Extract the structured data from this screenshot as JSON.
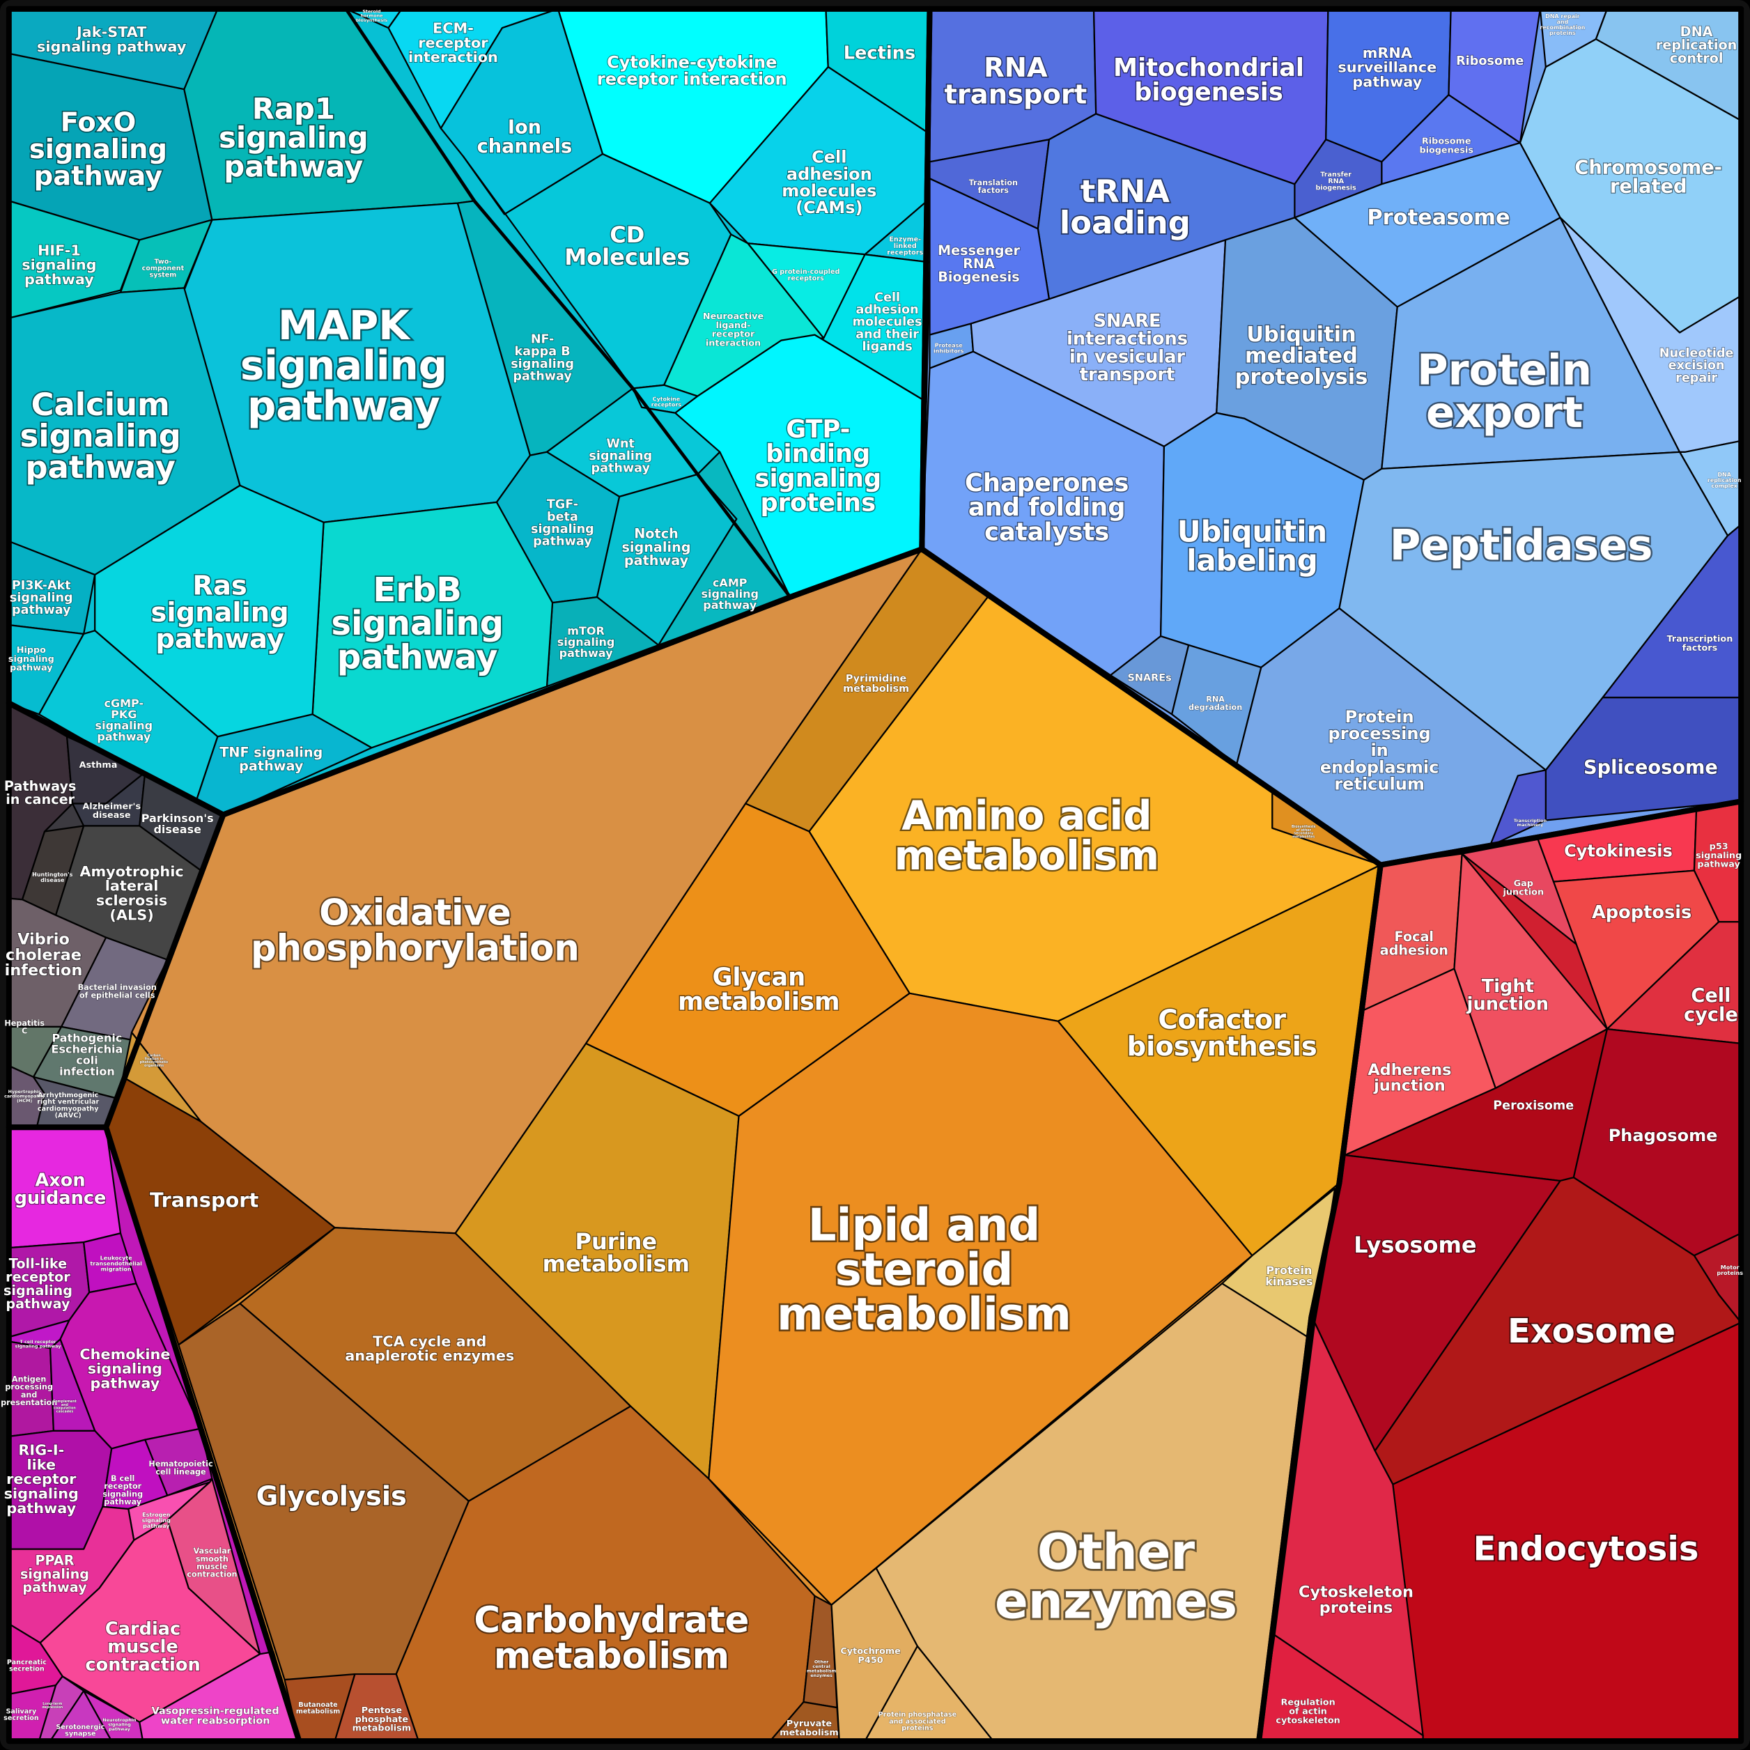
{
  "cells": [
    {
      "id": "c1",
      "lines": [
        "Jak-STAT",
        "signaling pathway"
      ],
      "color": "#0aa9c0"
    },
    {
      "id": "c2",
      "lines": [
        "FoxO",
        "signaling",
        "pathway"
      ],
      "color": "#05a4b6"
    },
    {
      "id": "c3",
      "lines": [
        "Rap1",
        "signaling",
        "pathway"
      ],
      "color": "#05b6b6"
    },
    {
      "id": "c4",
      "lines": [
        "Steroid",
        "hormone",
        "biosynthesis"
      ],
      "color": "#0bd4ec"
    },
    {
      "id": "c5",
      "lines": [
        "ECM-",
        "receptor",
        "interaction"
      ],
      "color": "#08d8f2"
    },
    {
      "id": "c6",
      "lines": [
        "Ion",
        "channels"
      ],
      "color": "#07c2dc"
    },
    {
      "id": "c7",
      "lines": [
        "Cytokine-cytokine",
        "receptor interaction"
      ],
      "color": "#00ffff"
    },
    {
      "id": "c8",
      "lines": [
        "Lectins"
      ],
      "color": "#00d2da"
    },
    {
      "id": "c9",
      "lines": [
        "Cell",
        "adhesion",
        "molecules",
        "(CAMs)"
      ],
      "color": "#08d2ea"
    },
    {
      "id": "c10",
      "lines": [
        "Enzyme-",
        "linked",
        "receptors"
      ],
      "color": "#07c8e0"
    },
    {
      "id": "c11",
      "lines": [
        "Cell",
        "adhesion",
        "molecules",
        "and their",
        "ligands"
      ],
      "color": "#00e2ea"
    },
    {
      "id": "c12",
      "lines": [
        "G protein-coupled",
        "receptors"
      ],
      "color": "#08ece4"
    },
    {
      "id": "c13",
      "lines": [
        "CD",
        "Molecules"
      ],
      "color": "#06c8da"
    },
    {
      "id": "c14",
      "lines": [
        "Neuroactive",
        "ligand-",
        "receptor",
        "interaction"
      ],
      "color": "#0ae6d6"
    },
    {
      "id": "c15",
      "lines": [
        "Cytokine",
        "receptors"
      ],
      "color": "#07d0e2"
    },
    {
      "id": "c16",
      "lines": [
        "GTP-",
        "binding",
        "signaling",
        "proteins"
      ],
      "color": "#00f6ff"
    },
    {
      "id": "c17",
      "lines": [
        "MAPK",
        "signaling",
        "pathway"
      ],
      "color": "#0bc2da"
    },
    {
      "id": "c18",
      "lines": [
        "HIF-1",
        "signaling",
        "pathway"
      ],
      "color": "#06c8c2"
    },
    {
      "id": "c19",
      "lines": [
        "Two-",
        "component",
        "system"
      ],
      "color": "#06c0b8"
    },
    {
      "id": "c20",
      "lines": [
        "Calcium",
        "signaling",
        "pathway"
      ],
      "color": "#07b8c8"
    },
    {
      "id": "c21",
      "lines": [
        "NF-",
        "kappa B",
        "signaling",
        "pathway"
      ],
      "color": "#06b4be"
    },
    {
      "id": "c22",
      "lines": [
        "Wnt",
        "signaling",
        "pathway"
      ],
      "color": "#08c8d8"
    },
    {
      "id": "c23",
      "lines": [
        "TGF-",
        "beta",
        "signaling",
        "pathway"
      ],
      "color": "#06b6ca"
    },
    {
      "id": "c24",
      "lines": [
        "Notch",
        "signaling",
        "pathway"
      ],
      "color": "#07c0d0"
    },
    {
      "id": "c25",
      "lines": [
        "cAMP",
        "signaling",
        "pathway"
      ],
      "color": "#08b8c0"
    },
    {
      "id": "c26",
      "lines": [
        "mTOR",
        "signaling",
        "pathway"
      ],
      "color": "#08b0b8"
    },
    {
      "id": "c27",
      "lines": [
        "ErbB",
        "signaling",
        "pathway"
      ],
      "color": "#0ad8d0"
    },
    {
      "id": "c28",
      "lines": [
        "Ras",
        "signaling",
        "pathway"
      ],
      "color": "#06d6e0"
    },
    {
      "id": "c29",
      "lines": [
        "PI3K-Akt",
        "signaling",
        "pathway"
      ],
      "color": "#05b0c4"
    },
    {
      "id": "c30",
      "lines": [
        "Hippo",
        "signaling",
        "pathway"
      ],
      "color": "#06bcd0"
    },
    {
      "id": "c31",
      "lines": [
        "cGMP-",
        "PKG",
        "signaling",
        "pathway"
      ],
      "color": "#08c8d8"
    },
    {
      "id": "c32",
      "lines": [
        "TNF signaling",
        "pathway"
      ],
      "color": "#08b6d0"
    },
    {
      "id": "d1",
      "lines": [
        "Pathways",
        "in cancer"
      ],
      "color": "#3b2e38"
    },
    {
      "id": "d2",
      "lines": [
        "Asthma"
      ],
      "color": "#35323e"
    },
    {
      "id": "d3",
      "lines": [
        "Alzheimer's",
        "disease"
      ],
      "color": "#383a48"
    },
    {
      "id": "d4",
      "lines": [
        "Parkinson's",
        "disease"
      ],
      "color": "#3a3c44"
    },
    {
      "id": "d5",
      "lines": [
        "Huntington's",
        "disease"
      ],
      "color": "#3e3836"
    },
    {
      "id": "d6",
      "lines": [
        "Amyotrophic",
        "lateral",
        "sclerosis",
        "(ALS)"
      ],
      "color": "#454545"
    },
    {
      "id": "d7",
      "lines": [
        "Vibrio",
        "cholerae",
        "infection"
      ],
      "color": "#6e6068"
    },
    {
      "id": "d8",
      "lines": [
        "Bacterial invasion",
        "of epithelial cells"
      ],
      "color": "#726a80"
    },
    {
      "id": "d9",
      "lines": [
        "Hepatitis",
        "C"
      ],
      "color": "#627668"
    },
    {
      "id": "d10",
      "lines": [
        "Pathogenic",
        "Escherichia",
        "coli",
        "infection"
      ],
      "color": "#60786e"
    },
    {
      "id": "d11",
      "lines": [
        "Hypertrophic",
        "cardiomyopathy",
        "(HCM)"
      ],
      "color": "#6a5870"
    },
    {
      "id": "d12",
      "lines": [
        "Arrhythmogenic",
        "right ventricular",
        "cardiomyopathy",
        "(ARVC)"
      ],
      "color": "#585868"
    },
    {
      "id": "m1",
      "lines": [
        "Axon",
        "guidance"
      ],
      "color": "#e628e0"
    },
    {
      "id": "m2",
      "lines": [
        "Toll-like",
        "receptor",
        "signaling",
        "pathway"
      ],
      "color": "#b018a8"
    },
    {
      "id": "m3",
      "lines": [
        "Leukocyte",
        "transendothelial",
        "migration"
      ],
      "color": "#c010c0"
    },
    {
      "id": "m4",
      "lines": [
        "T cell receptor",
        "signaling pathway"
      ],
      "color": "#c018c8"
    },
    {
      "id": "m5",
      "lines": [
        "Chemokine",
        "signaling",
        "pathway"
      ],
      "color": "#c818b0"
    },
    {
      "id": "m6",
      "lines": [
        "Antigen",
        "processing",
        "and",
        "presentation"
      ],
      "color": "#b018a0"
    },
    {
      "id": "m7",
      "lines": [
        "Complement",
        "and",
        "coagulation",
        "cascades"
      ],
      "color": "#b818b8"
    },
    {
      "id": "m8",
      "lines": [
        "RIG-I-",
        "like",
        "receptor",
        "signaling",
        "pathway"
      ],
      "color": "#b010a8"
    },
    {
      "id": "m9",
      "lines": [
        "B cell",
        "receptor",
        "signaling",
        "pathway"
      ],
      "color": "#c010c0"
    },
    {
      "id": "m10",
      "lines": [
        "Hematopoietic",
        "cell lineage"
      ],
      "color": "#b820b0"
    },
    {
      "id": "m11",
      "lines": [
        "Estrogen",
        "signaling",
        "pathway"
      ],
      "color": "#f850b0"
    },
    {
      "id": "m12",
      "lines": [
        "Vascular",
        "smooth",
        "muscle",
        "contraction"
      ],
      "color": "#e85088"
    },
    {
      "id": "m13",
      "lines": [
        "PPAR",
        "signaling",
        "pathway"
      ],
      "color": "#e83098"
    },
    {
      "id": "m14",
      "lines": [
        "Cardiac",
        "muscle",
        "contraction"
      ],
      "color": "#f84898"
    },
    {
      "id": "m15",
      "lines": [
        "Pancreatic",
        "secretion"
      ],
      "color": "#e01898"
    },
    {
      "id": "m16",
      "lines": [
        "Salivary",
        "secretion"
      ],
      "color": "#d020b0"
    },
    {
      "id": "m17",
      "lines": [
        "Long-term",
        "depression"
      ],
      "color": "#c840b8"
    },
    {
      "id": "m18",
      "lines": [
        "Serotonergic",
        "synapse"
      ],
      "color": "#c838c0"
    },
    {
      "id": "m19",
      "lines": [
        "Neurotrophin",
        "signaling",
        "pathway"
      ],
      "color": "#d030c0"
    },
    {
      "id": "m20",
      "lines": [
        "Vasopressin-regulated",
        "water reabsorption"
      ],
      "color": "#ee44c8"
    },
    {
      "id": "o1",
      "lines": [
        "Oxidative",
        "phosphorylation"
      ],
      "color": "#d99044"
    },
    {
      "id": "o2",
      "lines": [
        "Carbon",
        "fixation in",
        "photosynthetic",
        "organisms"
      ],
      "color": "#d49a38"
    },
    {
      "id": "o3",
      "lines": [
        "Transport"
      ],
      "color": "#8c4008"
    },
    {
      "id": "o4",
      "lines": [
        "Pyrimidine",
        "metabolism"
      ],
      "color": "#d08a1e"
    },
    {
      "id": "o5",
      "lines": [
        "Amino acid",
        "metabolism"
      ],
      "color": "#fbb224"
    },
    {
      "id": "o6",
      "lines": [
        "Biosynthesis",
        "of other",
        "secondary",
        "metabolites"
      ],
      "color": "#e09020"
    },
    {
      "id": "o7",
      "lines": [
        "Glycan",
        "metabolism"
      ],
      "color": "#ed9018"
    },
    {
      "id": "o8",
      "lines": [
        "Cofactor",
        "biosynthesis"
      ],
      "color": "#eda418"
    },
    {
      "id": "o9",
      "lines": [
        "Purine",
        "metabolism"
      ],
      "color": "#d8981f"
    },
    {
      "id": "o10",
      "lines": [
        "Lipid and",
        "steroid",
        "metabolism"
      ],
      "color": "#ec8e20"
    },
    {
      "id": "o11",
      "lines": [
        "TCA cycle and",
        "anaplerotic enzymes"
      ],
      "color": "#b86b20"
    },
    {
      "id": "o12",
      "lines": [
        "Glycolysis"
      ],
      "color": "#aa6428"
    },
    {
      "id": "o13",
      "lines": [
        "Carbohydrate",
        "metabolism"
      ],
      "color": "#c06820"
    },
    {
      "id": "o14",
      "lines": [
        "Butanoate",
        "metabolism"
      ],
      "color": "#a84e20"
    },
    {
      "id": "o15",
      "lines": [
        "Pentose",
        "phosphate",
        "metabolism"
      ],
      "color": "#b85030"
    },
    {
      "id": "o16",
      "lines": [
        "Other",
        "central",
        "metabolism",
        "enzymes"
      ],
      "color": "#a05826"
    },
    {
      "id": "o17",
      "lines": [
        "Pyruvate",
        "metabolism"
      ],
      "color": "#a05820"
    },
    {
      "id": "o18",
      "lines": [
        "Other",
        "enzymes"
      ],
      "color": "#e5b872"
    },
    {
      "id": "o19",
      "lines": [
        "Protein",
        "kinases"
      ],
      "color": "#e8c870"
    },
    {
      "id": "o20",
      "lines": [
        "Cytochrome",
        "P450"
      ],
      "color": "#e2ad60"
    },
    {
      "id": "o21",
      "lines": [
        "Protein phosphatase",
        "and associated",
        "proteins"
      ],
      "color": "#e6b468"
    },
    {
      "id": "b1",
      "lines": [
        "RNA",
        "transport"
      ],
      "color": "#5570e0"
    },
    {
      "id": "b2",
      "lines": [
        "Mitochondrial",
        "biogenesis"
      ],
      "color": "#5c60e8"
    },
    {
      "id": "b3",
      "lines": [
        "mRNA",
        "surveillance",
        "pathway"
      ],
      "color": "#4870e8"
    },
    {
      "id": "b4",
      "lines": [
        "Ribosome"
      ],
      "color": "#6070f0"
    },
    {
      "id": "b5",
      "lines": [
        "Ribosome",
        "biogenesis"
      ],
      "color": "#5a78f0"
    },
    {
      "id": "b6",
      "lines": [
        "Transfer",
        "RNA",
        "biogenesis"
      ],
      "color": "#4a60d0"
    },
    {
      "id": "b7",
      "lines": [
        "Translation",
        "factors"
      ],
      "color": "#5068d8"
    },
    {
      "id": "b8",
      "lines": [
        "tRNA",
        "loading"
      ],
      "color": "#5078e0"
    },
    {
      "id": "b9",
      "lines": [
        "Messenger",
        "RNA",
        "Biogenesis"
      ],
      "color": "#5878f0"
    },
    {
      "id": "b10",
      "lines": [
        "Protease",
        "inhibitors"
      ],
      "color": "#68a0f0"
    },
    {
      "id": "b11",
      "lines": [
        "SNARE",
        "interactions",
        "in vesicular",
        "transport"
      ],
      "color": "#8ab0f8"
    },
    {
      "id": "b12",
      "lines": [
        "Proteasome"
      ],
      "color": "#70b0f8"
    },
    {
      "id": "b13",
      "lines": [
        "Ubiquitin",
        "mediated",
        "proteolysis"
      ],
      "color": "#6aa0e0"
    },
    {
      "id": "b14",
      "lines": [
        "Protein",
        "export"
      ],
      "color": "#78b0f0"
    },
    {
      "id": "b15",
      "lines": [
        "Chromosome-",
        "related"
      ],
      "color": "#90d0f8"
    },
    {
      "id": "b16",
      "lines": [
        "DNA repair",
        "and",
        "recombination",
        "proteins"
      ],
      "color": "#88bcf8"
    },
    {
      "id": "b17",
      "lines": [
        "DNA",
        "replication",
        "control"
      ],
      "color": "#88c4f0"
    },
    {
      "id": "b18",
      "lines": [
        "Nucleotide",
        "excision",
        "repair"
      ],
      "color": "#a0c8fc"
    },
    {
      "id": "b19",
      "lines": [
        "DNA",
        "replication",
        "complex"
      ],
      "color": "#90c8f8"
    },
    {
      "id": "b20",
      "lines": [
        "Chaperones",
        "and folding",
        "catalysts"
      ],
      "color": "#72a2f8"
    },
    {
      "id": "b21",
      "lines": [
        "Ubiquitin",
        "labeling"
      ],
      "color": "#60a8f8"
    },
    {
      "id": "b22",
      "lines": [
        "Peptidases"
      ],
      "color": "#80b8f0"
    },
    {
      "id": "b23",
      "lines": [
        "SNAREs"
      ],
      "color": "#6898d8"
    },
    {
      "id": "b24",
      "lines": [
        "RNA",
        "degradation"
      ],
      "color": "#68a0e0"
    },
    {
      "id": "b25",
      "lines": [
        "Protein",
        "processing",
        "in",
        "endoplasmic",
        "reticulum"
      ],
      "color": "#78a8e8"
    },
    {
      "id": "b26",
      "lines": [
        "Transcription",
        "factors"
      ],
      "color": "#4858d0"
    },
    {
      "id": "b27",
      "lines": [
        "Spliceosome"
      ],
      "color": "#4050c0"
    },
    {
      "id": "b28",
      "lines": [
        "Transcription",
        "machinery"
      ],
      "color": "#5058d0"
    },
    {
      "id": "r1",
      "lines": [
        "Focal",
        "adhesion"
      ],
      "color": "#f05858"
    },
    {
      "id": "r2",
      "lines": [
        "Gap",
        "junction"
      ],
      "color": "#e84860"
    },
    {
      "id": "r3",
      "lines": [
        "Cytokinesis"
      ],
      "color": "#f83850"
    },
    {
      "id": "r4",
      "lines": [
        "p53",
        "signaling",
        "pathway"
      ],
      "color": "#e83040"
    },
    {
      "id": "r5",
      "lines": [
        "Apoptosis"
      ],
      "color": "#f04848"
    },
    {
      "id": "r6",
      "lines": [
        "Cell",
        "cycle"
      ],
      "color": "#e03040"
    },
    {
      "id": "r7",
      "lines": [
        "Tight",
        "junction"
      ],
      "color": "#f05060"
    },
    {
      "id": "r8",
      "lines": [
        "Adherens",
        "junction"
      ],
      "color": "#f85860"
    },
    {
      "id": "r9",
      "lines": [
        "Peroxisome"
      ],
      "color": "#b00818"
    },
    {
      "id": "r10",
      "lines": [
        "Phagosome"
      ],
      "color": "#b00820"
    },
    {
      "id": "r11",
      "lines": [
        "Motor",
        "proteins"
      ],
      "color": "#b81828"
    },
    {
      "id": "r12",
      "lines": [
        "Lysosome"
      ],
      "color": "#b00820"
    },
    {
      "id": "r13",
      "lines": [
        "Exosome"
      ],
      "color": "#b01818"
    },
    {
      "id": "r14",
      "lines": [
        "Endocytosis"
      ],
      "color": "#c00818"
    },
    {
      "id": "r15",
      "lines": [
        "Cytoskeleton",
        "proteins"
      ],
      "color": "#e02848"
    },
    {
      "id": "r16",
      "lines": [
        "Regulation",
        "of actin",
        "cytoskeleton"
      ],
      "color": "#e02040"
    }
  ]
}
